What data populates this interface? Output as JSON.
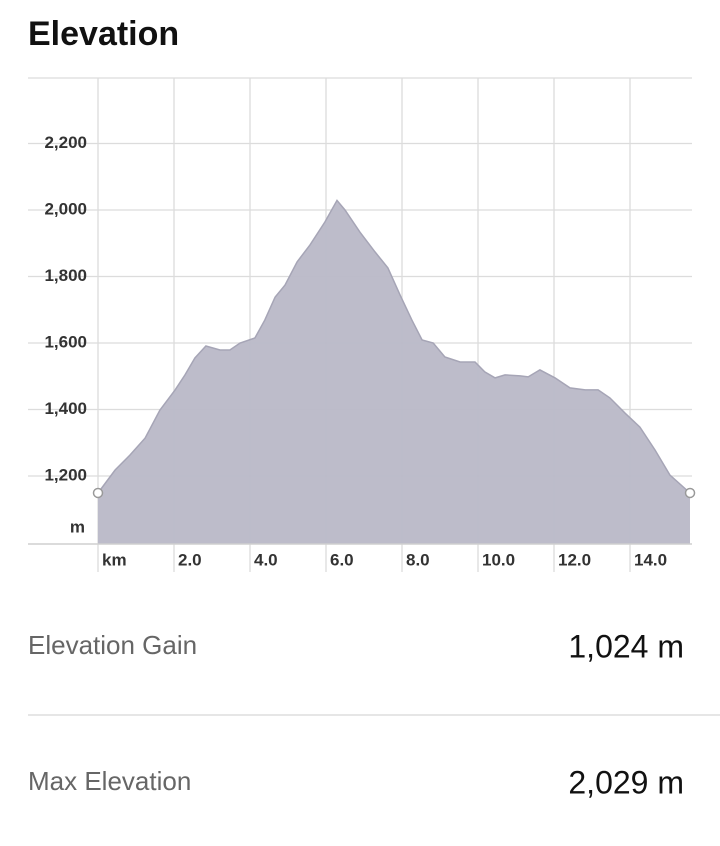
{
  "header": {
    "title": "Elevation"
  },
  "chart_data": {
    "type": "area",
    "color": "#b9b8c7",
    "line_color": "#a6a5b6",
    "x": [
      0,
      0.45,
      0.84,
      1.24,
      1.63,
      2.03,
      2.29,
      2.55,
      2.84,
      3.21,
      3.47,
      3.74,
      4.13,
      4.39,
      4.66,
      4.92,
      5.24,
      5.58,
      5.97,
      6.29,
      6.5,
      6.89,
      7.29,
      7.63,
      7.95,
      8.26,
      8.53,
      8.82,
      9.13,
      9.53,
      9.92,
      10.18,
      10.45,
      10.71,
      11.11,
      11.32,
      11.63,
      12.03,
      12.42,
      12.82,
      13.16,
      13.47,
      13.87,
      14.26,
      14.66,
      15.05,
      15.58
    ],
    "values": [
      1149,
      1218,
      1263,
      1314,
      1398,
      1459,
      1504,
      1555,
      1591,
      1579,
      1579,
      1600,
      1615,
      1669,
      1738,
      1774,
      1844,
      1895,
      1964,
      2029,
      2000,
      1934,
      1874,
      1826,
      1744,
      1669,
      1609,
      1600,
      1558,
      1543,
      1543,
      1513,
      1495,
      1504,
      1501,
      1498,
      1519,
      1495,
      1465,
      1459,
      1459,
      1435,
      1389,
      1347,
      1278,
      1203,
      1149
    ],
    "xlim": [
      0,
      15.6
    ],
    "ylim": [
      1000,
      2400
    ],
    "xticks": [
      {
        "value": 2,
        "label": "2.0"
      },
      {
        "value": 4,
        "label": "4.0"
      },
      {
        "value": 6,
        "label": "6.0"
      },
      {
        "value": 8,
        "label": "8.0"
      },
      {
        "value": 10,
        "label": "10.0"
      },
      {
        "value": 12,
        "label": "12.0"
      },
      {
        "value": 14,
        "label": "14.0"
      }
    ],
    "yticks": [
      {
        "value": 1200,
        "label": "1,200"
      },
      {
        "value": 1400,
        "label": "1,400"
      },
      {
        "value": 1600,
        "label": "1,600"
      },
      {
        "value": 1800,
        "label": "1,800"
      },
      {
        "value": 2000,
        "label": "2,000"
      },
      {
        "value": 2200,
        "label": "2,200"
      }
    ],
    "xlabel": "km",
    "ylabel": "m",
    "grid": true
  },
  "stats": [
    {
      "label": "Elevation Gain",
      "value": "1,024 m"
    },
    {
      "label": "Max Elevation",
      "value": "2,029 m"
    }
  ]
}
